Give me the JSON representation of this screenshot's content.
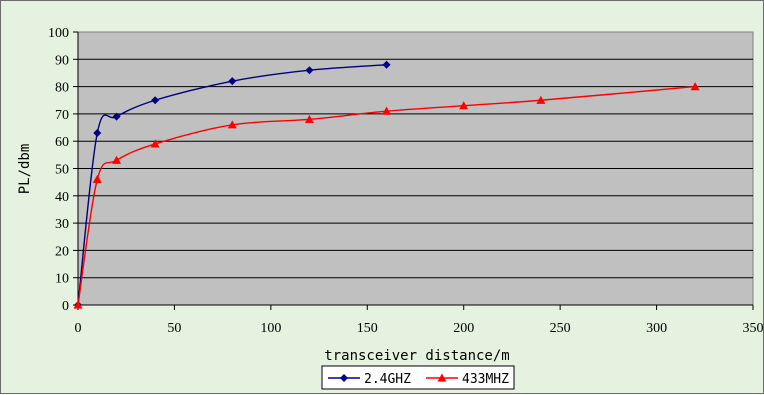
{
  "chart_data": {
    "type": "line",
    "title": "",
    "xlabel": "transceiver distance/m",
    "ylabel": "PL/dbm",
    "xlim": [
      0,
      350
    ],
    "ylim": [
      0,
      100
    ],
    "x_ticks": [
      0,
      50,
      100,
      150,
      200,
      250,
      300,
      350
    ],
    "y_ticks": [
      0,
      10,
      20,
      30,
      40,
      50,
      60,
      70,
      80,
      90,
      100
    ],
    "grid": "horizontal",
    "plot_background": "#C0C0C0",
    "legend_position": "bottom-center",
    "series": [
      {
        "name": "2.4GHZ",
        "color": "#000080",
        "marker": "diamond",
        "x": [
          0,
          10,
          20,
          40,
          80,
          120,
          160
        ],
        "y": [
          0,
          63,
          69,
          75,
          82,
          86,
          88
        ]
      },
      {
        "name": "433MHZ",
        "color": "#FF0000",
        "marker": "triangle",
        "x": [
          0,
          10,
          20,
          40,
          80,
          120,
          160,
          200,
          240,
          320
        ],
        "y": [
          0,
          46,
          53,
          59,
          66,
          68,
          71,
          73,
          75,
          80
        ]
      }
    ]
  }
}
